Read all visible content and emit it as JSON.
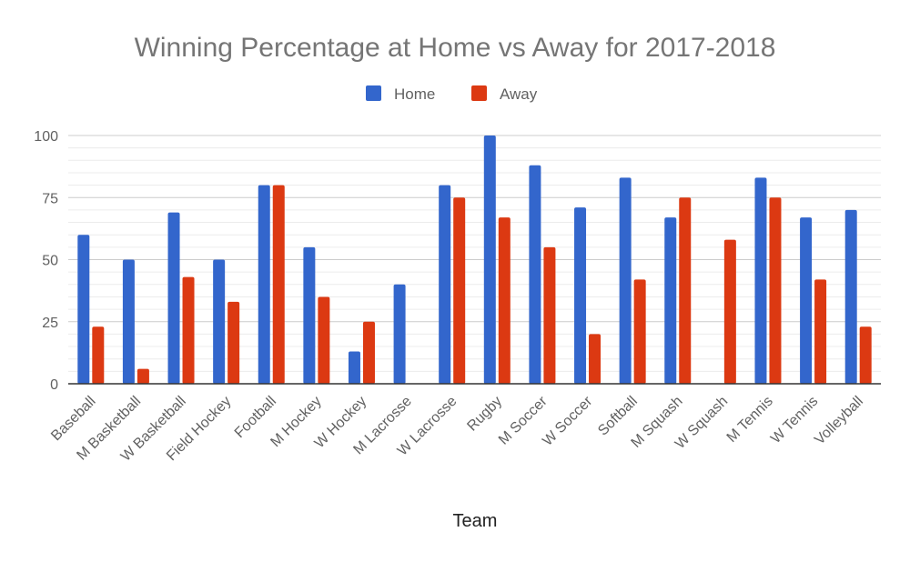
{
  "chart_data": {
    "type": "bar",
    "title": "Winning Percentage at Home vs Away for 2017-2018",
    "xlabel": "Team",
    "ylabel": "",
    "ylim": [
      0,
      100
    ],
    "yticks": [
      0,
      25,
      50,
      75,
      100
    ],
    "legend_position": "top",
    "grid": true,
    "categories": [
      "Baseball",
      "M Basketball",
      "W Basketball",
      "Field Hockey",
      "Football",
      "M Hockey",
      "W Hockey",
      "M Lacrosse",
      "W Lacrosse",
      "Rugby",
      "M Soccer",
      "W Soccer",
      "Softball",
      "M Squash",
      "W Squash",
      "M Tennis",
      "W Tennis",
      "Volleyball"
    ],
    "series": [
      {
        "name": "Home",
        "color": "#3366cc",
        "values": [
          60,
          50,
          69,
          50,
          80,
          55,
          13,
          40,
          80,
          100,
          88,
          71,
          83,
          67,
          0,
          83,
          67,
          70
        ]
      },
      {
        "name": "Away",
        "color": "#dc3912",
        "values": [
          23,
          6,
          43,
          33,
          80,
          35,
          25,
          0,
          75,
          67,
          55,
          20,
          42,
          75,
          58,
          75,
          42,
          23
        ]
      }
    ]
  }
}
